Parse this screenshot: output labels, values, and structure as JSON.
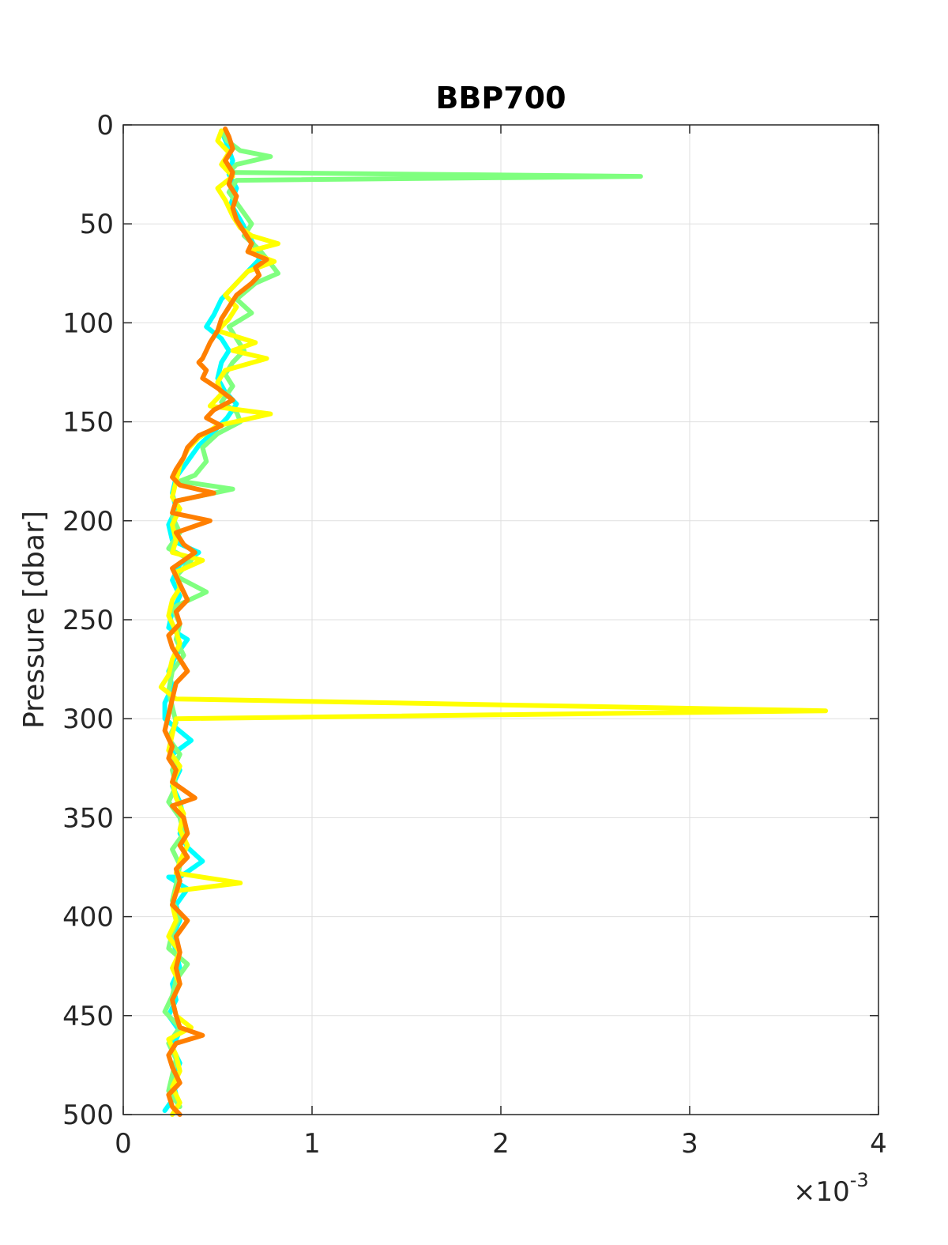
{
  "chart_data": {
    "type": "line",
    "title": "BBP700",
    "xlabel": "",
    "ylabel": "Pressure [dbar]",
    "x_scale_multiplier": "×10",
    "x_scale_exponent": "-3",
    "xlim": [
      0,
      4
    ],
    "ylim": [
      0,
      500
    ],
    "y_reversed": true,
    "x_ticks": [
      "0",
      "1",
      "2",
      "3",
      "4"
    ],
    "y_ticks": [
      "0",
      "50",
      "100",
      "150",
      "200",
      "250",
      "300",
      "350",
      "400",
      "450",
      "500"
    ],
    "grid": true,
    "series": [
      {
        "color": "#00ffff",
        "points": [
          [
            0.52,
            3
          ],
          [
            0.55,
            10
          ],
          [
            0.58,
            18
          ],
          [
            0.56,
            25
          ],
          [
            0.6,
            32
          ],
          [
            0.57,
            40
          ],
          [
            0.62,
            48
          ],
          [
            0.66,
            55
          ],
          [
            0.7,
            62
          ],
          [
            0.72,
            68
          ],
          [
            0.66,
            74
          ],
          [
            0.6,
            80
          ],
          [
            0.52,
            88
          ],
          [
            0.48,
            96
          ],
          [
            0.44,
            102
          ],
          [
            0.52,
            108
          ],
          [
            0.56,
            114
          ],
          [
            0.52,
            120
          ],
          [
            0.5,
            128
          ],
          [
            0.54,
            135
          ],
          [
            0.6,
            141
          ],
          [
            0.55,
            148
          ],
          [
            0.48,
            155
          ],
          [
            0.4,
            162
          ],
          [
            0.34,
            170
          ],
          [
            0.28,
            178
          ],
          [
            0.26,
            186
          ],
          [
            0.28,
            194
          ],
          [
            0.24,
            202
          ],
          [
            0.26,
            210
          ],
          [
            0.4,
            216
          ],
          [
            0.3,
            222
          ],
          [
            0.26,
            230
          ],
          [
            0.3,
            238
          ],
          [
            0.26,
            246
          ],
          [
            0.24,
            254
          ],
          [
            0.34,
            260
          ],
          [
            0.28,
            268
          ],
          [
            0.24,
            276
          ],
          [
            0.26,
            284
          ],
          [
            0.22,
            292
          ],
          [
            0.22,
            300
          ],
          [
            0.36,
            311
          ],
          [
            0.26,
            318
          ],
          [
            0.3,
            326
          ],
          [
            0.26,
            334
          ],
          [
            0.3,
            342
          ],
          [
            0.32,
            350
          ],
          [
            0.3,
            358
          ],
          [
            0.34,
            365
          ],
          [
            0.42,
            372
          ],
          [
            0.3,
            380
          ],
          [
            0.24,
            380
          ],
          [
            0.34,
            386
          ],
          [
            0.28,
            394
          ],
          [
            0.3,
            402
          ],
          [
            0.26,
            410
          ],
          [
            0.28,
            418
          ],
          [
            0.3,
            426
          ],
          [
            0.26,
            434
          ],
          [
            0.28,
            442
          ],
          [
            0.24,
            450
          ],
          [
            0.3,
            458
          ],
          [
            0.26,
            466
          ],
          [
            0.3,
            474
          ],
          [
            0.26,
            482
          ],
          [
            0.28,
            490
          ],
          [
            0.22,
            498
          ]
        ]
      },
      {
        "color": "#7fff7f",
        "points": [
          [
            0.52,
            3
          ],
          [
            0.55,
            8
          ],
          [
            0.62,
            13
          ],
          [
            0.78,
            16
          ],
          [
            0.6,
            20
          ],
          [
            0.56,
            24
          ],
          [
            2.74,
            26
          ],
          [
            0.6,
            28
          ],
          [
            0.56,
            34
          ],
          [
            0.62,
            42
          ],
          [
            0.68,
            50
          ],
          [
            0.64,
            56
          ],
          [
            0.72,
            63
          ],
          [
            0.78,
            70
          ],
          [
            0.82,
            75
          ],
          [
            0.7,
            80
          ],
          [
            0.6,
            88
          ],
          [
            0.68,
            95
          ],
          [
            0.56,
            102
          ],
          [
            0.6,
            108
          ],
          [
            0.64,
            114
          ],
          [
            0.58,
            120
          ],
          [
            0.54,
            126
          ],
          [
            0.58,
            132
          ],
          [
            0.52,
            140
          ],
          [
            0.6,
            145
          ],
          [
            0.62,
            150
          ],
          [
            0.5,
            156
          ],
          [
            0.42,
            163
          ],
          [
            0.44,
            170
          ],
          [
            0.38,
            177
          ],
          [
            0.3,
            180
          ],
          [
            0.58,
            184
          ],
          [
            0.28,
            190
          ],
          [
            0.26,
            198
          ],
          [
            0.3,
            206
          ],
          [
            0.24,
            214
          ],
          [
            0.36,
            220
          ],
          [
            0.28,
            228
          ],
          [
            0.44,
            236
          ],
          [
            0.26,
            244
          ],
          [
            0.3,
            252
          ],
          [
            0.28,
            260
          ],
          [
            0.32,
            268
          ],
          [
            0.26,
            276
          ],
          [
            0.24,
            286
          ],
          [
            0.26,
            294
          ],
          [
            0.28,
            302
          ],
          [
            0.24,
            310
          ],
          [
            0.3,
            318
          ],
          [
            0.26,
            326
          ],
          [
            0.28,
            334
          ],
          [
            0.24,
            342
          ],
          [
            0.3,
            350
          ],
          [
            0.32,
            358
          ],
          [
            0.26,
            366
          ],
          [
            0.3,
            374
          ],
          [
            0.28,
            384
          ],
          [
            0.26,
            392
          ],
          [
            0.3,
            400
          ],
          [
            0.26,
            408
          ],
          [
            0.24,
            416
          ],
          [
            0.34,
            424
          ],
          [
            0.28,
            432
          ],
          [
            0.26,
            440
          ],
          [
            0.22,
            448
          ],
          [
            0.3,
            456
          ],
          [
            0.24,
            464
          ],
          [
            0.28,
            472
          ],
          [
            0.26,
            480
          ],
          [
            0.24,
            488
          ],
          [
            0.3,
            496
          ]
        ]
      },
      {
        "color": "#ffff00",
        "points": [
          [
            0.52,
            3
          ],
          [
            0.5,
            8
          ],
          [
            0.56,
            14
          ],
          [
            0.52,
            20
          ],
          [
            0.58,
            26
          ],
          [
            0.5,
            32
          ],
          [
            0.54,
            38
          ],
          [
            0.58,
            46
          ],
          [
            0.62,
            52
          ],
          [
            0.68,
            56
          ],
          [
            0.82,
            60
          ],
          [
            0.66,
            64
          ],
          [
            0.8,
            69
          ],
          [
            0.66,
            74
          ],
          [
            0.6,
            80
          ],
          [
            0.54,
            86
          ],
          [
            0.6,
            92
          ],
          [
            0.56,
            98
          ],
          [
            0.5,
            104
          ],
          [
            0.7,
            110
          ],
          [
            0.58,
            114
          ],
          [
            0.76,
            118
          ],
          [
            0.54,
            124
          ],
          [
            0.5,
            130
          ],
          [
            0.52,
            136
          ],
          [
            0.46,
            142
          ],
          [
            0.78,
            146
          ],
          [
            0.5,
            152
          ],
          [
            0.4,
            158
          ],
          [
            0.34,
            164
          ],
          [
            0.3,
            172
          ],
          [
            0.28,
            180
          ],
          [
            0.26,
            188
          ],
          [
            0.3,
            194
          ],
          [
            0.26,
            202
          ],
          [
            0.28,
            210
          ],
          [
            0.26,
            216
          ],
          [
            0.42,
            220
          ],
          [
            0.28,
            226
          ],
          [
            0.3,
            234
          ],
          [
            0.26,
            240
          ],
          [
            0.24,
            248
          ],
          [
            0.28,
            256
          ],
          [
            0.3,
            262
          ],
          [
            0.26,
            270
          ],
          [
            0.24,
            278
          ],
          [
            0.2,
            284
          ],
          [
            0.28,
            290
          ],
          [
            3.72,
            296
          ],
          [
            0.28,
            300
          ],
          [
            0.26,
            308
          ],
          [
            0.24,
            316
          ],
          [
            0.3,
            324
          ],
          [
            0.26,
            332
          ],
          [
            0.28,
            340
          ],
          [
            0.32,
            348
          ],
          [
            0.3,
            356
          ],
          [
            0.34,
            364
          ],
          [
            0.3,
            372
          ],
          [
            0.28,
            378
          ],
          [
            0.62,
            383
          ],
          [
            0.28,
            387
          ],
          [
            0.26,
            394
          ],
          [
            0.28,
            402
          ],
          [
            0.24,
            410
          ],
          [
            0.3,
            418
          ],
          [
            0.26,
            426
          ],
          [
            0.3,
            434
          ],
          [
            0.26,
            442
          ],
          [
            0.28,
            450
          ],
          [
            0.36,
            456
          ],
          [
            0.24,
            462
          ],
          [
            0.28,
            470
          ],
          [
            0.3,
            478
          ],
          [
            0.26,
            486
          ],
          [
            0.3,
            494
          ],
          [
            0.26,
            500
          ]
        ]
      },
      {
        "color": "#ff7f00",
        "points": [
          [
            0.54,
            2
          ],
          [
            0.56,
            6
          ],
          [
            0.58,
            12
          ],
          [
            0.54,
            18
          ],
          [
            0.58,
            24
          ],
          [
            0.56,
            30
          ],
          [
            0.6,
            36
          ],
          [
            0.58,
            42
          ],
          [
            0.6,
            48
          ],
          [
            0.64,
            54
          ],
          [
            0.68,
            60
          ],
          [
            0.66,
            64
          ],
          [
            0.76,
            68
          ],
          [
            0.7,
            72
          ],
          [
            0.72,
            76
          ],
          [
            0.68,
            80
          ],
          [
            0.6,
            86
          ],
          [
            0.56,
            92
          ],
          [
            0.52,
            98
          ],
          [
            0.5,
            104
          ],
          [
            0.46,
            110
          ],
          [
            0.44,
            114
          ],
          [
            0.42,
            118
          ],
          [
            0.4,
            120
          ],
          [
            0.44,
            124
          ],
          [
            0.42,
            128
          ],
          [
            0.5,
            133
          ],
          [
            0.58,
            139
          ],
          [
            0.48,
            144
          ],
          [
            0.44,
            148
          ],
          [
            0.52,
            152
          ],
          [
            0.4,
            157
          ],
          [
            0.34,
            163
          ],
          [
            0.32,
            168
          ],
          [
            0.28,
            174
          ],
          [
            0.26,
            178
          ],
          [
            0.3,
            182
          ],
          [
            0.48,
            186
          ],
          [
            0.28,
            190
          ],
          [
            0.26,
            196
          ],
          [
            0.46,
            200
          ],
          [
            0.28,
            206
          ],
          [
            0.32,
            212
          ],
          [
            0.38,
            216
          ],
          [
            0.26,
            224
          ],
          [
            0.3,
            232
          ],
          [
            0.34,
            240
          ],
          [
            0.28,
            246
          ],
          [
            0.3,
            252
          ],
          [
            0.24,
            258
          ],
          [
            0.26,
            264
          ],
          [
            0.3,
            270
          ],
          [
            0.34,
            276
          ],
          [
            0.28,
            282
          ],
          [
            0.26,
            290
          ],
          [
            0.24,
            298
          ],
          [
            0.22,
            306
          ],
          [
            0.26,
            314
          ],
          [
            0.24,
            320
          ],
          [
            0.28,
            326
          ],
          [
            0.26,
            332
          ],
          [
            0.38,
            340
          ],
          [
            0.26,
            344
          ],
          [
            0.32,
            350
          ],
          [
            0.34,
            358
          ],
          [
            0.3,
            364
          ],
          [
            0.34,
            370
          ],
          [
            0.28,
            376
          ],
          [
            0.3,
            382
          ],
          [
            0.28,
            388
          ],
          [
            0.26,
            394
          ],
          [
            0.34,
            402
          ],
          [
            0.28,
            410
          ],
          [
            0.3,
            418
          ],
          [
            0.28,
            426
          ],
          [
            0.3,
            434
          ],
          [
            0.26,
            442
          ],
          [
            0.28,
            450
          ],
          [
            0.3,
            456
          ],
          [
            0.42,
            460
          ],
          [
            0.28,
            464
          ],
          [
            0.24,
            470
          ],
          [
            0.26,
            476
          ],
          [
            0.3,
            484
          ],
          [
            0.24,
            490
          ],
          [
            0.26,
            496
          ],
          [
            0.3,
            500
          ]
        ]
      }
    ]
  }
}
